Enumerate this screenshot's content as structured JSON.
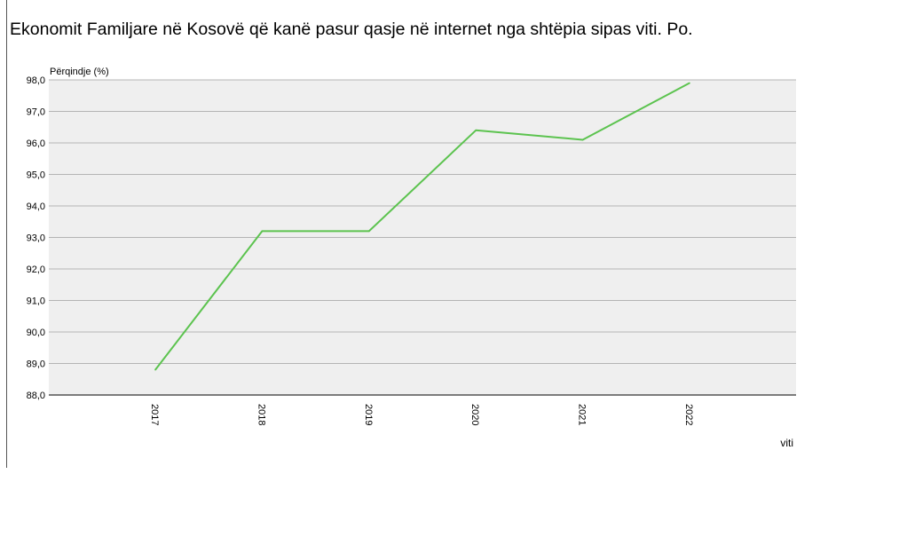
{
  "chart_data": {
    "type": "line",
    "title": "Ekonomit Familjare në Kosovë që kanë pasur qasje në internet nga shtëpia sipas viti. Po.",
    "xlabel": "viti",
    "ylabel": "Përqindje (%)",
    "ylim": [
      88.0,
      98.0
    ],
    "yticks": [
      "88,0",
      "89,0",
      "90,0",
      "91,0",
      "92,0",
      "93,0",
      "94,0",
      "95,0",
      "96,0",
      "97,0",
      "98,0"
    ],
    "categories": [
      "2017",
      "2018",
      "2019",
      "2020",
      "2021",
      "2022"
    ],
    "series": [
      {
        "values": [
          88.8,
          93.2,
          93.2,
          96.4,
          96.1,
          97.9
        ]
      }
    ],
    "grid": true,
    "legend": "none",
    "colors": {
      "line": "#5cc34f",
      "plot_bg": "#efefef",
      "grid": "#b4b4b4"
    }
  }
}
